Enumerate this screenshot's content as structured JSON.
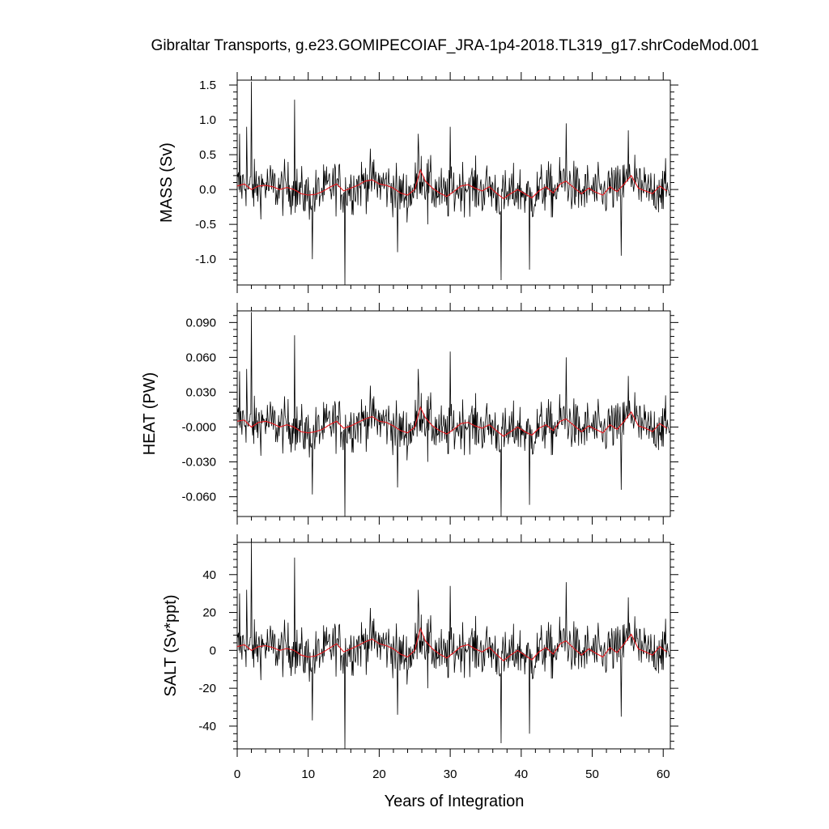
{
  "chart_data": {
    "type": "line",
    "title": "Gibraltar Transports, g.e23.GOMIPECOIAF_JRA-1p4-2018.TL319_g17.shrCodeMod.001",
    "xlabel": "Years of Integration",
    "xlim": [
      0,
      61
    ],
    "xticks": [
      "0",
      "10",
      "20",
      "30",
      "40",
      "50",
      "60"
    ],
    "grid": false,
    "colors": {
      "raw": "#000000",
      "smooth": "#e8161c"
    },
    "panels": [
      {
        "name": "mass",
        "ylabel": "MASS (Sv)",
        "ylim": [
          -1.37,
          1.57
        ],
        "yticks": [
          "1.5",
          "1.0",
          "0.5",
          "0.0",
          "-0.5",
          "-1.0"
        ],
        "ytick_values": [
          1.5,
          1.0,
          0.5,
          0.0,
          -0.5,
          -1.0
        ],
        "smooth": [
          [
            0,
            0.05
          ],
          [
            1,
            0.08
          ],
          [
            2,
            0.0
          ],
          [
            3,
            0.05
          ],
          [
            4,
            0.06
          ],
          [
            5,
            0.04
          ],
          [
            6,
            0.0
          ],
          [
            7,
            0.03
          ],
          [
            8,
            0.0
          ],
          [
            9,
            -0.06
          ],
          [
            10,
            -0.08
          ],
          [
            11,
            -0.07
          ],
          [
            12,
            -0.03
          ],
          [
            13,
            0.03
          ],
          [
            14,
            0.08
          ],
          [
            15,
            -0.02
          ],
          [
            16,
            0.02
          ],
          [
            17,
            0.06
          ],
          [
            18,
            0.12
          ],
          [
            19,
            0.14
          ],
          [
            20,
            0.08
          ],
          [
            21,
            0.06
          ],
          [
            22,
            0.02
          ],
          [
            23,
            -0.05
          ],
          [
            24,
            -0.08
          ],
          [
            25,
            0.0
          ],
          [
            25.8,
            0.28
          ],
          [
            26.5,
            0.12
          ],
          [
            27.5,
            0.02
          ],
          [
            28.5,
            -0.05
          ],
          [
            29.5,
            -0.1
          ],
          [
            30.5,
            -0.03
          ],
          [
            31.5,
            0.05
          ],
          [
            32.5,
            0.07
          ],
          [
            33.5,
            0.02
          ],
          [
            34.5,
            -0.02
          ],
          [
            35.5,
            0.04
          ],
          [
            36.5,
            -0.05
          ],
          [
            37.5,
            -0.13
          ],
          [
            38.5,
            -0.06
          ],
          [
            39.5,
            0.0
          ],
          [
            40.5,
            -0.06
          ],
          [
            41.5,
            -0.12
          ],
          [
            42.5,
            -0.02
          ],
          [
            43.5,
            0.04
          ],
          [
            44.5,
            -0.05
          ],
          [
            45.5,
            0.08
          ],
          [
            46.3,
            0.12
          ],
          [
            47.5,
            0.02
          ],
          [
            48.5,
            -0.06
          ],
          [
            49.5,
            0.02
          ],
          [
            50.5,
            -0.04
          ],
          [
            51.5,
            -0.08
          ],
          [
            52.5,
            0.04
          ],
          [
            53.5,
            -0.03
          ],
          [
            54.5,
            0.08
          ],
          [
            55.5,
            0.2
          ],
          [
            56.5,
            0.02
          ],
          [
            57.5,
            -0.02
          ],
          [
            58.5,
            -0.06
          ],
          [
            59.5,
            0.05
          ],
          [
            60.5,
            -0.02
          ]
        ],
        "spikes": [
          [
            0.3,
            0.8
          ],
          [
            1.3,
            0.9
          ],
          [
            2.0,
            1.55
          ],
          [
            8.1,
            1.29
          ],
          [
            10.6,
            -1.0
          ],
          [
            15.2,
            -1.37
          ],
          [
            22.6,
            -0.9
          ],
          [
            25.5,
            0.8
          ],
          [
            26.8,
            -0.5
          ],
          [
            30.0,
            0.9
          ],
          [
            37.2,
            -1.3
          ],
          [
            41.2,
            -1.15
          ],
          [
            46.3,
            0.95
          ],
          [
            54.1,
            -0.95
          ],
          [
            55.1,
            0.85
          ],
          [
            56.0,
            0.5
          ]
        ]
      },
      {
        "name": "heat",
        "ylabel": "HEAT (PW)",
        "ylim": [
          -0.077,
          0.1
        ],
        "yticks": [
          "0.090",
          "0.060",
          "0.030",
          "-0.000",
          "-0.030",
          "-0.060"
        ],
        "ytick_values": [
          0.09,
          0.06,
          0.03,
          0.0,
          -0.03,
          -0.06
        ],
        "smooth": [
          [
            0,
            0.005
          ],
          [
            1,
            0.006
          ],
          [
            2,
            0.0
          ],
          [
            3,
            0.004
          ],
          [
            4,
            0.005
          ],
          [
            5,
            0.003
          ],
          [
            6,
            0.0
          ],
          [
            7,
            0.002
          ],
          [
            8,
            0.0
          ],
          [
            9,
            -0.004
          ],
          [
            10,
            -0.005
          ],
          [
            11,
            -0.004
          ],
          [
            12,
            -0.002
          ],
          [
            13,
            0.002
          ],
          [
            14,
            0.005
          ],
          [
            15,
            -0.001
          ],
          [
            16,
            0.001
          ],
          [
            17,
            0.004
          ],
          [
            18,
            0.007
          ],
          [
            19,
            0.009
          ],
          [
            20,
            0.005
          ],
          [
            21,
            0.004
          ],
          [
            22,
            0.001
          ],
          [
            23,
            -0.003
          ],
          [
            24,
            -0.005
          ],
          [
            25,
            0.0
          ],
          [
            25.8,
            0.017
          ],
          [
            26.5,
            0.008
          ],
          [
            27.5,
            0.001
          ],
          [
            28.5,
            -0.003
          ],
          [
            29.5,
            -0.006
          ],
          [
            30.5,
            -0.002
          ],
          [
            31.5,
            0.003
          ],
          [
            32.5,
            0.004
          ],
          [
            33.5,
            0.001
          ],
          [
            34.5,
            -0.001
          ],
          [
            35.5,
            0.002
          ],
          [
            36.5,
            -0.003
          ],
          [
            37.5,
            -0.008
          ],
          [
            38.5,
            -0.004
          ],
          [
            39.5,
            0.0
          ],
          [
            40.5,
            -0.004
          ],
          [
            41.5,
            -0.007
          ],
          [
            42.5,
            -0.001
          ],
          [
            43.5,
            0.002
          ],
          [
            44.5,
            -0.003
          ],
          [
            45.5,
            0.005
          ],
          [
            46.3,
            0.007
          ],
          [
            47.5,
            0.001
          ],
          [
            48.5,
            -0.004
          ],
          [
            49.5,
            0.001
          ],
          [
            50.5,
            -0.002
          ],
          [
            51.5,
            -0.005
          ],
          [
            52.5,
            0.002
          ],
          [
            53.5,
            -0.002
          ],
          [
            54.5,
            0.005
          ],
          [
            55.5,
            0.013
          ],
          [
            56.5,
            0.001
          ],
          [
            57.5,
            -0.001
          ],
          [
            58.5,
            -0.004
          ],
          [
            59.5,
            0.003
          ],
          [
            60.5,
            -0.001
          ]
        ],
        "spikes": [
          [
            0.3,
            0.048
          ],
          [
            1.3,
            0.05
          ],
          [
            2.0,
            0.099
          ],
          [
            8.1,
            0.079
          ],
          [
            10.6,
            -0.058
          ],
          [
            15.2,
            -0.077
          ],
          [
            22.6,
            -0.052
          ],
          [
            25.5,
            0.05
          ],
          [
            26.8,
            -0.03
          ],
          [
            30.0,
            0.065
          ],
          [
            37.2,
            -0.077
          ],
          [
            41.2,
            -0.067
          ],
          [
            46.3,
            0.06
          ],
          [
            54.1,
            -0.054
          ],
          [
            55.1,
            0.044
          ],
          [
            56.0,
            0.03
          ]
        ]
      },
      {
        "name": "salt",
        "ylabel": "SALT (Sv*ppt)",
        "ylim": [
          -52,
          57
        ],
        "yticks": [
          "40",
          "20",
          "0",
          "-20",
          "-40"
        ],
        "ytick_values": [
          40,
          20,
          0,
          -20,
          -40
        ],
        "smooth": [
          [
            0,
            2
          ],
          [
            1,
            3
          ],
          [
            2,
            0
          ],
          [
            3,
            2
          ],
          [
            4,
            2.5
          ],
          [
            5,
            1.5
          ],
          [
            6,
            0
          ],
          [
            7,
            1
          ],
          [
            8,
            0
          ],
          [
            9,
            -2.5
          ],
          [
            10,
            -3.5
          ],
          [
            11,
            -3
          ],
          [
            12,
            -1.2
          ],
          [
            13,
            1.2
          ],
          [
            14,
            3.5
          ],
          [
            15,
            -0.8
          ],
          [
            16,
            0.8
          ],
          [
            17,
            2.5
          ],
          [
            18,
            4.5
          ],
          [
            19,
            6
          ],
          [
            20,
            3.5
          ],
          [
            21,
            2.5
          ],
          [
            22,
            0.8
          ],
          [
            23,
            -2
          ],
          [
            24,
            -3.5
          ],
          [
            25,
            0
          ],
          [
            25.8,
            11.5
          ],
          [
            26.5,
            5
          ],
          [
            27.5,
            0.8
          ],
          [
            28.5,
            -2
          ],
          [
            29.5,
            -4
          ],
          [
            30.5,
            -1.2
          ],
          [
            31.5,
            2
          ],
          [
            32.5,
            3
          ],
          [
            33.5,
            0.8
          ],
          [
            34.5,
            -0.8
          ],
          [
            35.5,
            1.5
          ],
          [
            36.5,
            -2
          ],
          [
            37.5,
            -5.5
          ],
          [
            38.5,
            -2.5
          ],
          [
            39.5,
            0
          ],
          [
            40.5,
            -2.5
          ],
          [
            41.5,
            -5
          ],
          [
            42.5,
            -0.8
          ],
          [
            43.5,
            1.5
          ],
          [
            44.5,
            -2
          ],
          [
            45.5,
            3.5
          ],
          [
            46.3,
            5
          ],
          [
            47.5,
            0.8
          ],
          [
            48.5,
            -2.5
          ],
          [
            49.5,
            0.8
          ],
          [
            50.5,
            -1.5
          ],
          [
            51.5,
            -3.5
          ],
          [
            52.5,
            1.5
          ],
          [
            53.5,
            -1.2
          ],
          [
            54.5,
            3.5
          ],
          [
            55.5,
            8.5
          ],
          [
            56.5,
            0.8
          ],
          [
            57.5,
            -0.8
          ],
          [
            58.5,
            -2.5
          ],
          [
            59.5,
            2
          ],
          [
            60.5,
            -0.8
          ]
        ],
        "spikes": [
          [
            0.3,
            30
          ],
          [
            1.3,
            32
          ],
          [
            2.0,
            57
          ],
          [
            8.1,
            49
          ],
          [
            10.6,
            -37
          ],
          [
            15.2,
            -52
          ],
          [
            22.6,
            -34
          ],
          [
            25.5,
            32
          ],
          [
            26.8,
            -20
          ],
          [
            30.0,
            34
          ],
          [
            37.2,
            -49
          ],
          [
            41.2,
            -44
          ],
          [
            46.3,
            36
          ],
          [
            54.1,
            -35
          ],
          [
            55.1,
            28
          ],
          [
            56.0,
            18
          ]
        ]
      }
    ]
  }
}
